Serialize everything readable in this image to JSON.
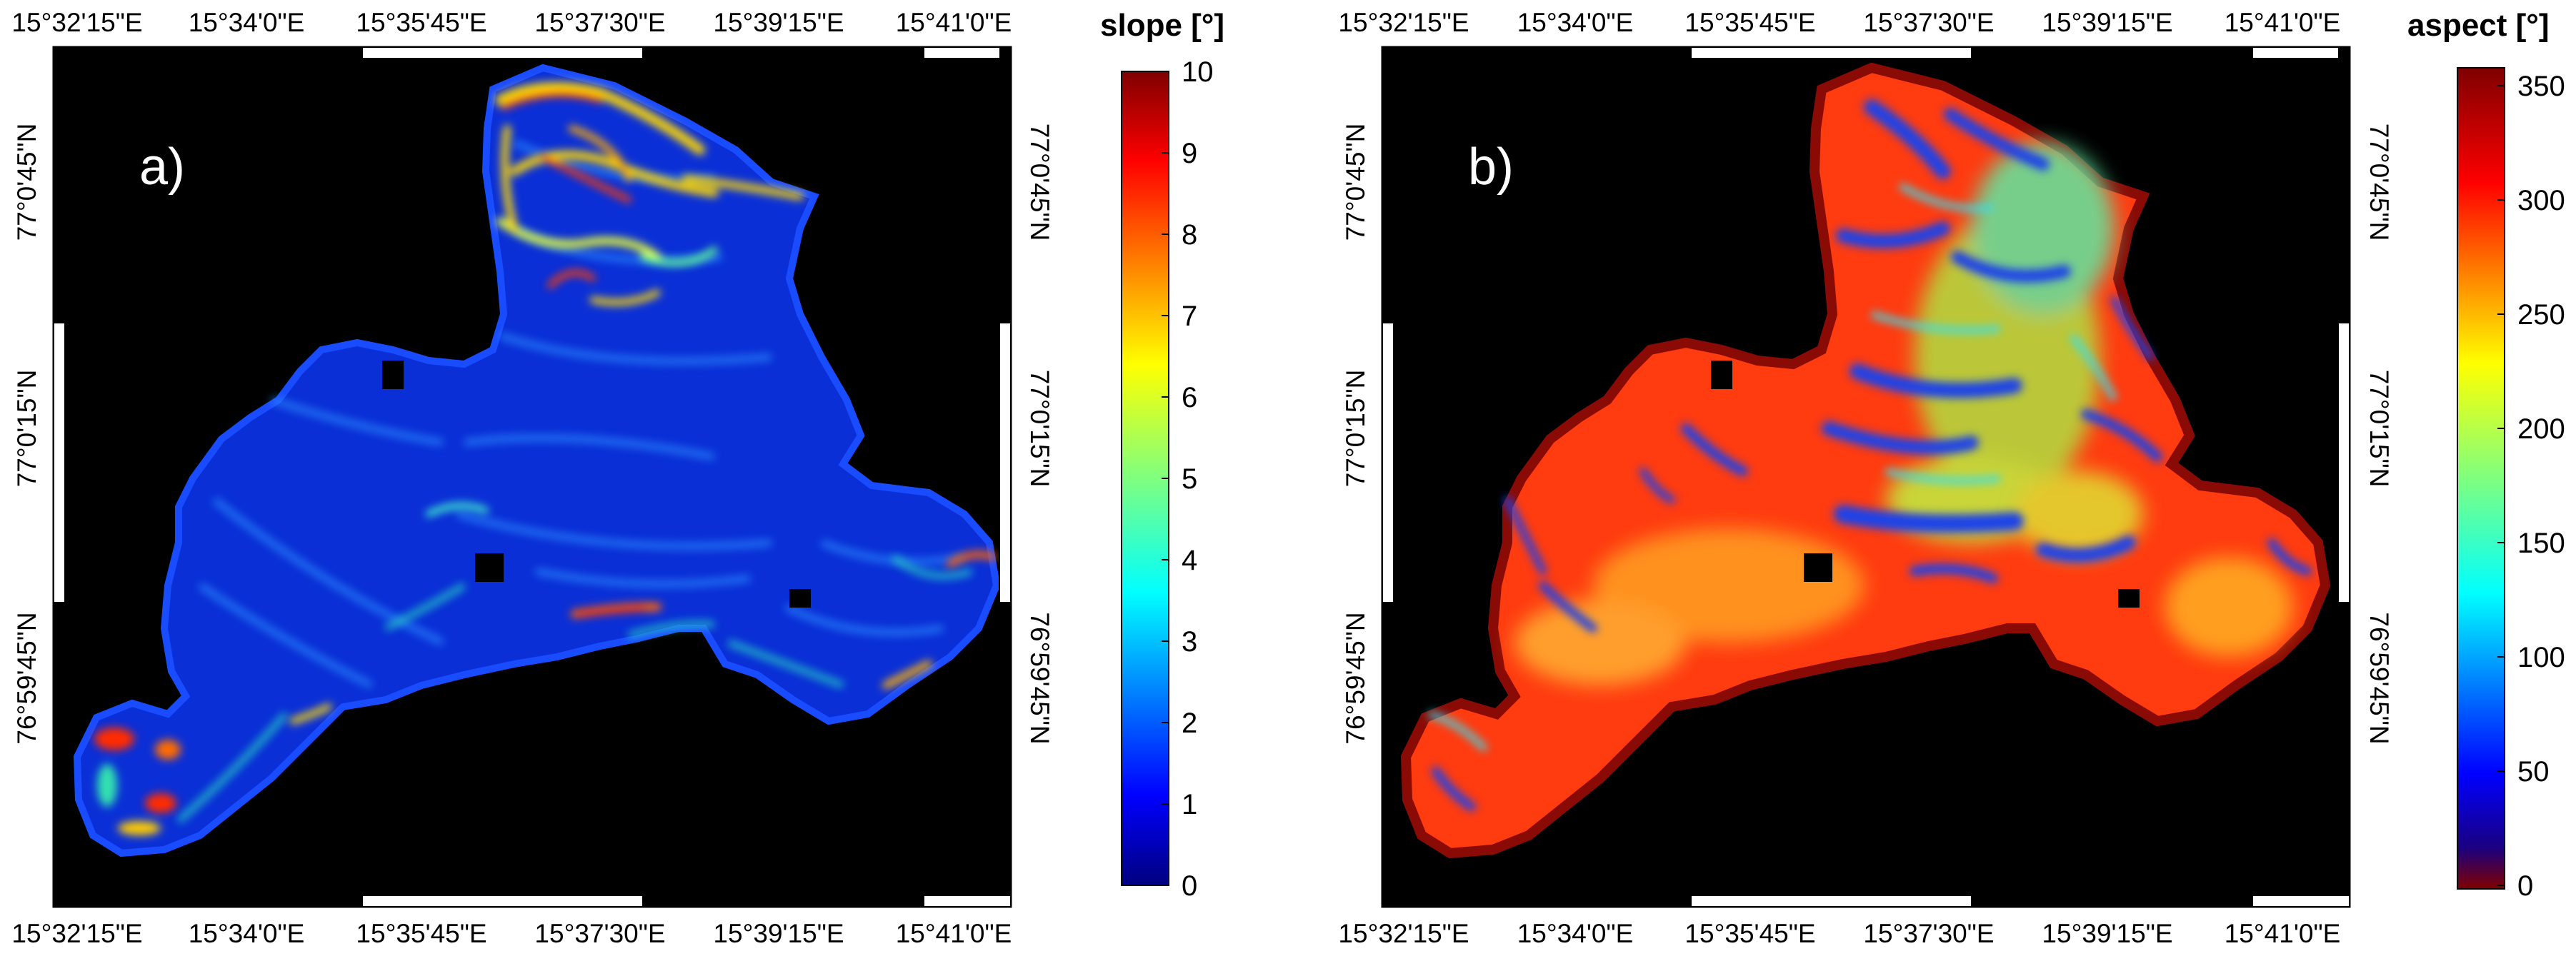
{
  "panels": [
    {
      "id": "a",
      "letter": "a)",
      "colorbar": {
        "title": "slope [°]",
        "ticks": [
          "0",
          "1",
          "2",
          "3",
          "4",
          "5",
          "6",
          "7",
          "8",
          "9",
          "10"
        ],
        "colormap": "jet",
        "direction": "low-blue-to-high-red"
      },
      "lon_top": [
        "15°32'15\"E",
        "15°34'0\"E",
        "15°35'45\"E",
        "15°37'30\"E",
        "15°39'15\"E",
        "15°41'0\"E"
      ],
      "lon_bottom": [
        "15°32'15\"E",
        "15°34'0\"E",
        "15°35'45\"E",
        "15°37'30\"E",
        "15°39'15\"E",
        "15°41'0\"E"
      ],
      "lat_left": [
        "77°0'45\"N",
        "77°0'15\"N",
        "76°59'45\"N"
      ],
      "lat_right": [
        "77°0'45\"N",
        "77°0'15\"N",
        "76°59'45\"N"
      ]
    },
    {
      "id": "b",
      "letter": "b)",
      "colorbar": {
        "title": "aspect [°]",
        "ticks": [
          "0",
          "50",
          "100",
          "150",
          "200",
          "250",
          "300",
          "350"
        ],
        "colormap": "jet-reversed",
        "direction": "low-darkred-to-high-darkred"
      },
      "lon_top": [
        "15°32'15\"E",
        "15°34'0\"E",
        "15°35'45\"E",
        "15°37'30\"E",
        "15°39'15\"E",
        "15°41'0\"E"
      ],
      "lon_bottom": [
        "15°32'15\"E",
        "15°34'0\"E",
        "15°35'45\"E",
        "15°37'30\"E",
        "15°39'15\"E",
        "15°41'0\"E"
      ],
      "lat_left": [
        "77°0'45\"N",
        "77°0'15\"N",
        "76°59'45\"N"
      ],
      "lat_right": [
        "77°0'45\"N",
        "77°0'15\"N",
        "76°59'45\"N"
      ]
    }
  ],
  "colors": {
    "map_background": "#000000",
    "slope_fill": "#0a2fd6",
    "slope_edge": "#1a4cff",
    "aspect_fill": "#ff3b10",
    "aspect_edge": "#8a0b05",
    "aspect_blue": "#1f43e8",
    "aspect_yellow": "#e6e62a"
  }
}
